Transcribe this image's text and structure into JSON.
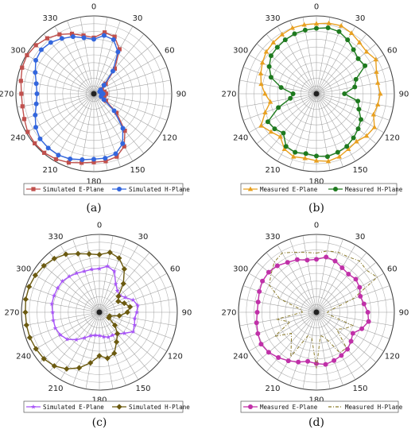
{
  "figure": {
    "angle_ticks": [
      "0",
      "30",
      "60",
      "90",
      "120",
      "150",
      "180",
      "210",
      "240",
      "270",
      "300",
      "330"
    ]
  },
  "chart_data": [
    {
      "type": "polar",
      "panel_label": "(a)",
      "angle_ticks_deg": [
        0,
        30,
        60,
        90,
        120,
        150,
        180,
        210,
        240,
        270,
        300,
        330
      ],
      "angular_step_deg": 10,
      "rlim": [
        0,
        1
      ],
      "grid": true,
      "legend_position": "bottom",
      "series": [
        {
          "name": "Simulated E-Plane",
          "color": "#c0504d",
          "marker": "square",
          "radius_at_deg": {
            "0": 0.72,
            "10": 0.8,
            "20": 0.78,
            "30": 0.66,
            "40": 0.42,
            "50": 0.2,
            "60": 0.12,
            "70": 0.1,
            "80": 0.14,
            "90": 0.16,
            "100": 0.14,
            "110": 0.12,
            "120": 0.18,
            "130": 0.38,
            "140": 0.62,
            "150": 0.78,
            "160": 0.86,
            "170": 0.88,
            "180": 0.88,
            "190": 0.9,
            "200": 0.94,
            "210": 0.97,
            "220": 0.99,
            "230": 0.99,
            "240": 0.98,
            "250": 0.95,
            "260": 0.93,
            "270": 0.93,
            "280": 0.95,
            "290": 0.98,
            "300": 0.99,
            "310": 0.97,
            "320": 0.93,
            "330": 0.88,
            "340": 0.82,
            "350": 0.76
          }
        },
        {
          "name": "Simulated H-Plane",
          "color": "#3366dd",
          "marker": "circle",
          "radius_at_deg": {
            "0": 0.7,
            "10": 0.76,
            "20": 0.74,
            "30": 0.62,
            "40": 0.38,
            "50": 0.17,
            "60": 0.1,
            "70": 0.08,
            "80": 0.1,
            "90": 0.12,
            "100": 0.1,
            "110": 0.1,
            "120": 0.15,
            "130": 0.34,
            "140": 0.58,
            "150": 0.74,
            "160": 0.82,
            "170": 0.84,
            "180": 0.84,
            "190": 0.86,
            "200": 0.89,
            "210": 0.91,
            "220": 0.91,
            "230": 0.9,
            "240": 0.86,
            "250": 0.8,
            "260": 0.75,
            "270": 0.73,
            "280": 0.75,
            "290": 0.8,
            "300": 0.86,
            "310": 0.88,
            "320": 0.86,
            "330": 0.82,
            "340": 0.78,
            "350": 0.73
          }
        }
      ]
    },
    {
      "type": "polar",
      "panel_label": "(b)",
      "angle_ticks_deg": [
        0,
        30,
        60,
        90,
        120,
        150,
        180,
        210,
        240,
        270,
        300,
        330
      ],
      "angular_step_deg": 10,
      "rlim": [
        0,
        1
      ],
      "grid": true,
      "legend_position": "bottom",
      "series": [
        {
          "name": "Measured E-Plane",
          "color": "#e8a020",
          "marker": "triangle",
          "radius_at_deg": {
            "0": 0.9,
            "10": 0.92,
            "20": 0.93,
            "30": 0.9,
            "40": 0.86,
            "50": 0.84,
            "60": 0.88,
            "70": 0.82,
            "80": 0.8,
            "90": 0.82,
            "100": 0.8,
            "110": 0.78,
            "120": 0.86,
            "130": 0.84,
            "140": 0.8,
            "150": 0.82,
            "160": 0.86,
            "170": 0.88,
            "180": 0.86,
            "190": 0.84,
            "200": 0.86,
            "210": 0.82,
            "220": 0.72,
            "230": 0.76,
            "240": 0.82,
            "250": 0.7,
            "260": 0.6,
            "270": 0.66,
            "280": 0.72,
            "290": 0.76,
            "300": 0.8,
            "310": 0.84,
            "320": 0.86,
            "330": 0.88,
            "340": 0.9,
            "350": 0.9
          }
        },
        {
          "name": "Measured H-Plane",
          "color": "#1e7a1e",
          "marker": "circle",
          "radius_at_deg": {
            "0": 0.84,
            "10": 0.86,
            "20": 0.85,
            "30": 0.8,
            "40": 0.74,
            "50": 0.7,
            "60": 0.72,
            "70": 0.54,
            "80": 0.5,
            "90": 0.36,
            "100": 0.54,
            "110": 0.58,
            "120": 0.66,
            "130": 0.7,
            "140": 0.74,
            "150": 0.78,
            "160": 0.8,
            "170": 0.82,
            "180": 0.8,
            "190": 0.78,
            "200": 0.8,
            "210": 0.78,
            "220": 0.66,
            "230": 0.7,
            "240": 0.72,
            "250": 0.52,
            "260": 0.34,
            "270": 0.3,
            "280": 0.46,
            "290": 0.62,
            "300": 0.7,
            "310": 0.76,
            "320": 0.78,
            "330": 0.8,
            "340": 0.82,
            "350": 0.83
          }
        }
      ]
    },
    {
      "type": "polar",
      "panel_label": "(c)",
      "angle_ticks_deg": [
        0,
        30,
        60,
        90,
        120,
        150,
        180,
        210,
        240,
        270,
        300,
        330
      ],
      "angular_step_deg": 10,
      "rlim": [
        0,
        1
      ],
      "grid": true,
      "legend_position": "bottom",
      "series": [
        {
          "name": "Simulated E-Plane",
          "color": "#a855f7",
          "marker": "star",
          "radius_at_deg": {
            "0": 0.56,
            "10": 0.6,
            "20": 0.56,
            "30": 0.42,
            "40": 0.36,
            "50": 0.34,
            "60": 0.38,
            "70": 0.46,
            "80": 0.5,
            "90": 0.48,
            "100": 0.46,
            "110": 0.48,
            "120": 0.5,
            "130": 0.42,
            "140": 0.36,
            "150": 0.34,
            "160": 0.34,
            "170": 0.32,
            "180": 0.3,
            "190": 0.3,
            "200": 0.32,
            "210": 0.38,
            "220": 0.46,
            "230": 0.54,
            "240": 0.58,
            "250": 0.6,
            "260": 0.6,
            "270": 0.6,
            "280": 0.62,
            "290": 0.62,
            "300": 0.62,
            "310": 0.62,
            "320": 0.6,
            "330": 0.58,
            "340": 0.56,
            "350": 0.56
          }
        },
        {
          "name": "Simulated H-Plane",
          "color": "#6b5a10",
          "marker": "diamond",
          "radius_at_deg": {
            "0": 0.74,
            "10": 0.78,
            "20": 0.74,
            "30": 0.64,
            "40": 0.48,
            "50": 0.32,
            "60": 0.28,
            "70": 0.34,
            "80": 0.4,
            "90": 0.36,
            "100": 0.26,
            "110": 0.14,
            "120": 0.14,
            "130": 0.26,
            "140": 0.36,
            "150": 0.44,
            "160": 0.56,
            "170": 0.6,
            "180": 0.56,
            "190": 0.66,
            "200": 0.76,
            "210": 0.84,
            "220": 0.9,
            "230": 0.93,
            "240": 0.94,
            "250": 0.95,
            "260": 0.95,
            "270": 0.95,
            "280": 0.96,
            "290": 0.96,
            "300": 0.95,
            "310": 0.93,
            "320": 0.9,
            "330": 0.86,
            "340": 0.8,
            "350": 0.76
          }
        }
      ]
    },
    {
      "type": "polar",
      "panel_label": "(d)",
      "angle_ticks_deg": [
        0,
        30,
        60,
        90,
        120,
        150,
        180,
        210,
        240,
        270,
        300,
        330
      ],
      "angular_step_deg": 10,
      "rlim": [
        0,
        1
      ],
      "grid": true,
      "legend_position": "bottom",
      "series": [
        {
          "name": "Measured E-Plane",
          "color": "#c030a8",
          "marker": "circle",
          "radius_at_deg": {
            "0": 0.68,
            "10": 0.72,
            "20": 0.7,
            "30": 0.66,
            "40": 0.64,
            "50": 0.66,
            "60": 0.64,
            "70": 0.6,
            "80": 0.62,
            "90": 0.66,
            "100": 0.68,
            "110": 0.62,
            "120": 0.54,
            "130": 0.58,
            "140": 0.62,
            "150": 0.64,
            "160": 0.66,
            "170": 0.68,
            "180": 0.66,
            "190": 0.64,
            "200": 0.68,
            "210": 0.72,
            "220": 0.76,
            "230": 0.8,
            "240": 0.82,
            "250": 0.8,
            "260": 0.78,
            "270": 0.76,
            "280": 0.76,
            "290": 0.78,
            "300": 0.8,
            "310": 0.8,
            "320": 0.78,
            "330": 0.74,
            "340": 0.72,
            "350": 0.68
          }
        },
        {
          "name": "Measured H-Plane",
          "color": "#8a7a2a",
          "marker": "dash-dot",
          "radius_at_deg": {
            "0": 0.76,
            "10": 0.8,
            "20": 0.82,
            "30": 0.82,
            "40": 0.86,
            "50": 0.84,
            "60": 0.9,
            "70": 0.5,
            "80": 0.2,
            "90": 0.14,
            "100": 0.16,
            "110": 0.5,
            "120": 0.42,
            "130": 0.34,
            "140": 0.6,
            "150": 0.6,
            "160": 0.36,
            "170": 0.3,
            "180": 0.72,
            "190": 0.34,
            "200": 0.32,
            "210": 0.66,
            "220": 0.5,
            "230": 0.42,
            "240": 0.62,
            "250": 0.36,
            "260": 0.52,
            "270": 0.18,
            "280": 0.2,
            "290": 0.5,
            "300": 0.7,
            "310": 0.76,
            "320": 0.84,
            "330": 0.88,
            "340": 0.82,
            "350": 0.78
          }
        }
      ]
    }
  ]
}
